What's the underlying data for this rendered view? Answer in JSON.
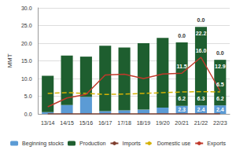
{
  "chart_data": {
    "type": "bar",
    "y_label": "MMT",
    "stacked": true,
    "grid": true,
    "legend": "bottom",
    "categories": [
      "13/14",
      "14/15",
      "15/16",
      "16/17",
      "17/18",
      "18/19",
      "19/20",
      "20/21",
      "21/22",
      "22/23"
    ],
    "ylim": [
      0,
      30
    ],
    "yticks": [
      {
        "value": 0,
        "label": "0.0"
      },
      {
        "value": 5,
        "label": "5.0"
      },
      {
        "value": 10,
        "label": "10.0"
      },
      {
        "value": 15,
        "label": "15.0"
      },
      {
        "value": 20,
        "label": "20.0"
      },
      {
        "value": 25,
        "label": "25.0"
      },
      {
        "value": 30,
        "label": "30.0"
      }
    ],
    "series": [
      {
        "name": "Beginning stocks",
        "type": "bar",
        "color": "#5b9bd5",
        "values": [
          0.5,
          2.5,
          4.8,
          0.8,
          1.0,
          1.2,
          1.8,
          2.3,
          2.4,
          2.4
        ],
        "value_labels": [
          null,
          null,
          null,
          null,
          null,
          null,
          null,
          "2.3",
          "2.4",
          "2.4"
        ]
      },
      {
        "name": "Production",
        "type": "bar",
        "color": "#1e5e2f",
        "values": [
          10.3,
          14.0,
          11.4,
          18.5,
          17.8,
          18.8,
          19.7,
          17.9,
          22.2,
          12.9
        ],
        "value_labels": [
          null,
          null,
          null,
          null,
          null,
          null,
          null,
          null,
          "22.2",
          "12.9"
        ]
      },
      {
        "name": "Imports",
        "type": "line",
        "color": "#7f3f2f",
        "values": [
          0,
          0,
          0,
          0,
          0,
          0,
          0,
          0,
          0,
          0
        ],
        "value_labels": [
          null,
          null,
          null,
          null,
          null,
          null,
          null,
          "0.0",
          "0.0",
          "0.0"
        ]
      },
      {
        "name": "Domestic use",
        "type": "line",
        "color": "#d4b106",
        "line_style": "dashed",
        "values": [
          5.8,
          6.0,
          5.8,
          5.5,
          5.6,
          5.8,
          6.0,
          6.2,
          6.3,
          6.2
        ],
        "value_labels": [
          null,
          null,
          null,
          null,
          null,
          null,
          null,
          "6.2",
          "6.3",
          "6.2"
        ]
      },
      {
        "name": "Exports",
        "type": "line",
        "color": "#c0392b",
        "values": [
          2.0,
          4.5,
          5.5,
          11.0,
          11.2,
          10.0,
          11.3,
          11.5,
          16.0,
          6.5
        ],
        "value_labels": [
          null,
          null,
          null,
          null,
          null,
          null,
          null,
          "11.5",
          "16.0",
          "6.5"
        ]
      }
    ]
  }
}
